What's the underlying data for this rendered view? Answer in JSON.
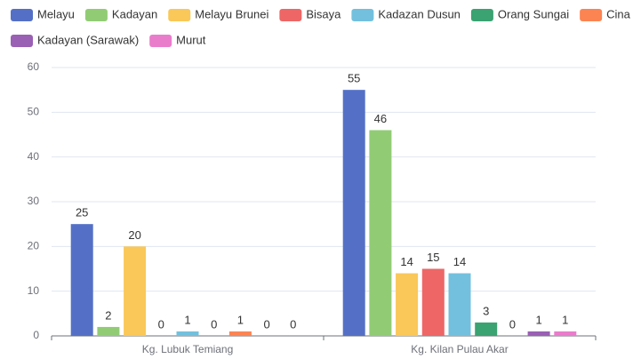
{
  "chart_data": {
    "type": "bar",
    "categories": [
      "Kg. Lubuk Temiang",
      "Kg. Kilan Pulau Akar"
    ],
    "series": [
      {
        "name": "Melayu",
        "color": "#5470c6",
        "values": [
          25,
          55
        ]
      },
      {
        "name": "Kadayan",
        "color": "#91cc75",
        "values": [
          2,
          46
        ]
      },
      {
        "name": "Melayu Brunei",
        "color": "#fac858",
        "values": [
          20,
          14
        ]
      },
      {
        "name": "Bisaya",
        "color": "#ee6666",
        "values": [
          0,
          15
        ]
      },
      {
        "name": "Kadazan Dusun",
        "color": "#73c0de",
        "values": [
          1,
          14
        ]
      },
      {
        "name": "Orang Sungai",
        "color": "#3ba272",
        "values": [
          0,
          3
        ]
      },
      {
        "name": "Cina",
        "color": "#fc8452",
        "values": [
          1,
          0
        ]
      },
      {
        "name": "Kadayan (Sarawak)",
        "color": "#9a60b4",
        "values": [
          0,
          1
        ]
      },
      {
        "name": "Murut",
        "color": "#ea7ccc",
        "values": [
          0,
          1
        ]
      }
    ],
    "ylim": [
      0,
      60
    ],
    "yticks": [
      0,
      10,
      20,
      30,
      40,
      50,
      60
    ],
    "grid": true,
    "legend": "top"
  }
}
